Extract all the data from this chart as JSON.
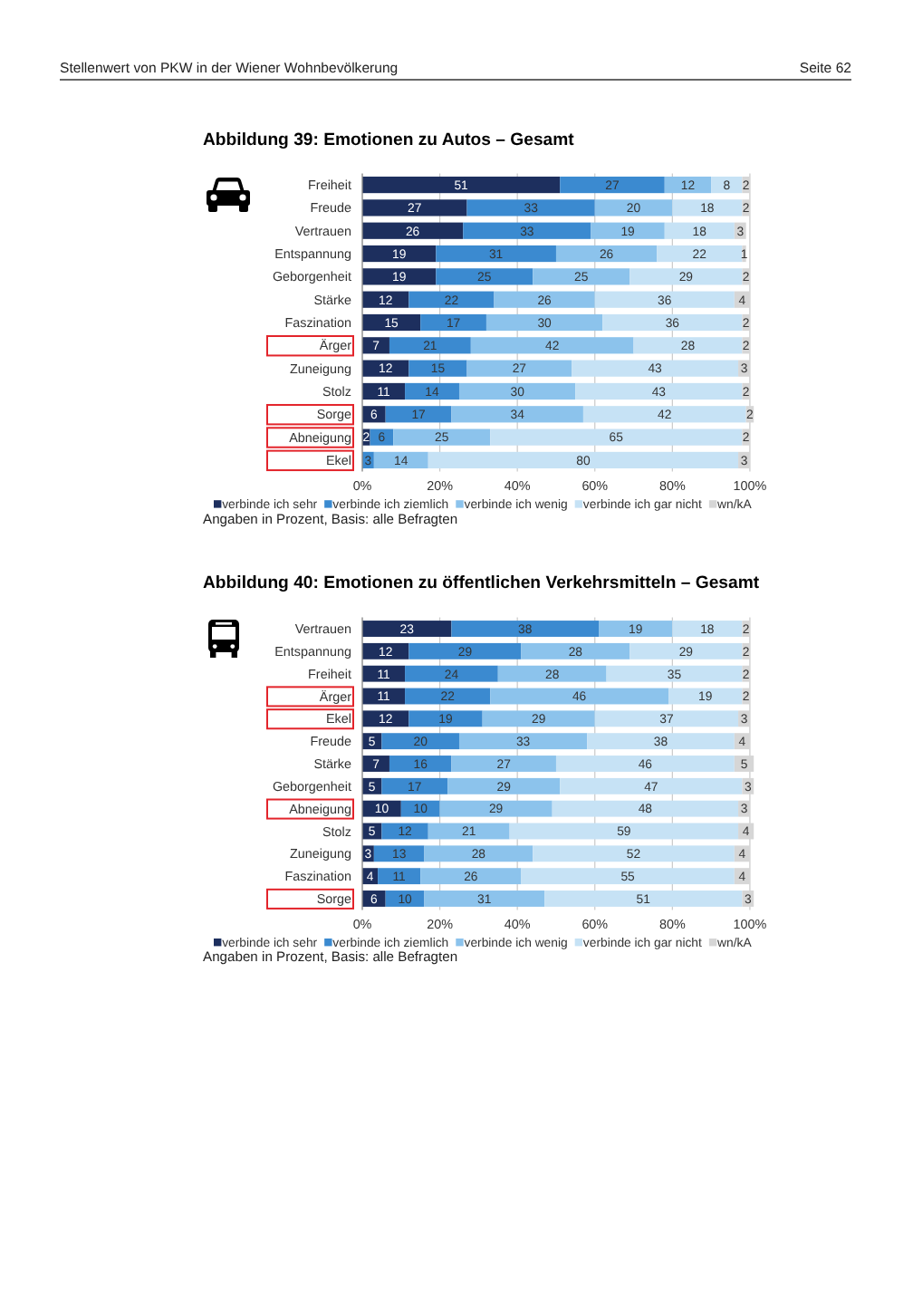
{
  "chart_data": [
    {
      "type": "bar",
      "orientation": "horizontal",
      "stacked": true,
      "title": "Abbildung 39: Emotionen zu Autos – Gesamt",
      "categories": [
        "Freiheit",
        "Freude",
        "Vertrauen",
        "Entspannung",
        "Geborgenheit",
        "Stärke",
        "Faszination",
        "Ärger",
        "Zuneigung",
        "Stolz",
        "Sorge",
        "Abneigung",
        "Ekel"
      ],
      "series": [
        {
          "name": "verbinde ich sehr",
          "color": "#1d2f5e",
          "values": [
            51,
            27,
            26,
            19,
            19,
            12,
            15,
            7,
            12,
            11,
            6,
            2,
            0
          ],
          "value_labels": [
            "51",
            "27",
            "26",
            "19",
            "19",
            "12",
            "15",
            "7",
            "12",
            "11",
            "6",
            "2",
            null
          ]
        },
        {
          "name": "verbinde ich ziemlich",
          "color": "#3b8ad0",
          "values": [
            27,
            33,
            33,
            31,
            25,
            22,
            17,
            21,
            15,
            14,
            17,
            6,
            3
          ]
        },
        {
          "name": "verbinde ich wenig",
          "color": "#8cc3ec",
          "values": [
            12,
            20,
            19,
            26,
            25,
            26,
            30,
            42,
            27,
            30,
            34,
            25,
            14
          ]
        },
        {
          "name": "verbinde ich gar nicht",
          "color": "#c6e2f5",
          "values": [
            8,
            18,
            18,
            22,
            29,
            36,
            36,
            28,
            43,
            43,
            42,
            65,
            80
          ]
        },
        {
          "name": "wn/kA",
          "color": "#d6d6d6",
          "values": [
            2,
            2,
            3,
            1,
            2,
            4,
            2,
            2,
            3,
            2,
            2,
            2,
            3
          ]
        }
      ],
      "xlim": [
        0,
        101
      ],
      "xticks": [
        {
          "value": 0,
          "label": "0%"
        },
        {
          "value": 20,
          "label": "20%"
        },
        {
          "value": 40,
          "label": "40%"
        },
        {
          "value": 60,
          "label": "60%"
        },
        {
          "value": 80,
          "label": "80%"
        },
        {
          "value": 100,
          "label": "100%"
        }
      ],
      "grid": "x",
      "legend": "bottom",
      "data_labels": true,
      "annotations": [
        "Stellenwert von PKW in der Wiener Wohnbevölkerung",
        "Seite 62",
        "Angaben in Prozent, Basis: alle Befragten"
      ]
    },
    {
      "type": "bar",
      "orientation": "horizontal",
      "stacked": true,
      "title": "Abbildung 40: Emotionen zu öffentlichen Verkehrsmitteln – Gesamt",
      "categories": [
        "Vertrauen",
        "Entspannung",
        "Freiheit",
        "Ärger",
        "Ekel",
        "Freude",
        "Stärke",
        "Geborgenheit",
        "Abneigung",
        "Stolz",
        "Zuneigung",
        "Faszination",
        "Sorge"
      ],
      "series": [
        {
          "name": "verbinde ich sehr",
          "color": "#1d2f5e",
          "values": [
            23,
            12,
            11,
            11,
            12,
            5,
            7,
            5,
            10,
            5,
            3,
            4,
            6
          ]
        },
        {
          "name": "verbinde ich ziemlich",
          "color": "#3b8ad0",
          "values": [
            38,
            29,
            24,
            22,
            19,
            20,
            16,
            17,
            10,
            12,
            13,
            11,
            10
          ]
        },
        {
          "name": "verbinde ich wenig",
          "color": "#8cc3ec",
          "values": [
            19,
            28,
            28,
            46,
            29,
            33,
            27,
            29,
            29,
            21,
            28,
            26,
            31
          ]
        },
        {
          "name": "verbinde ich gar nicht",
          "color": "#c6e2f5",
          "values": [
            18,
            29,
            35,
            19,
            37,
            38,
            46,
            47,
            48,
            59,
            52,
            55,
            51
          ]
        },
        {
          "name": "wn/kA",
          "color": "#d6d6d6",
          "values": [
            2,
            2,
            2,
            2,
            3,
            4,
            5,
            3,
            3,
            4,
            4,
            4,
            3
          ]
        }
      ],
      "xlim": [
        0,
        101
      ],
      "xticks": [
        {
          "value": 0,
          "label": "0%"
        },
        {
          "value": 20,
          "label": "20%"
        },
        {
          "value": 40,
          "label": "40%"
        },
        {
          "value": 60,
          "label": "60%"
        },
        {
          "value": 80,
          "label": "80%"
        },
        {
          "value": 100,
          "label": "100%"
        }
      ],
      "grid": "x",
      "legend": "bottom",
      "data_labels": true,
      "annotations": [
        "Angaben in Prozent, Basis: alle Befragten"
      ]
    }
  ]
}
